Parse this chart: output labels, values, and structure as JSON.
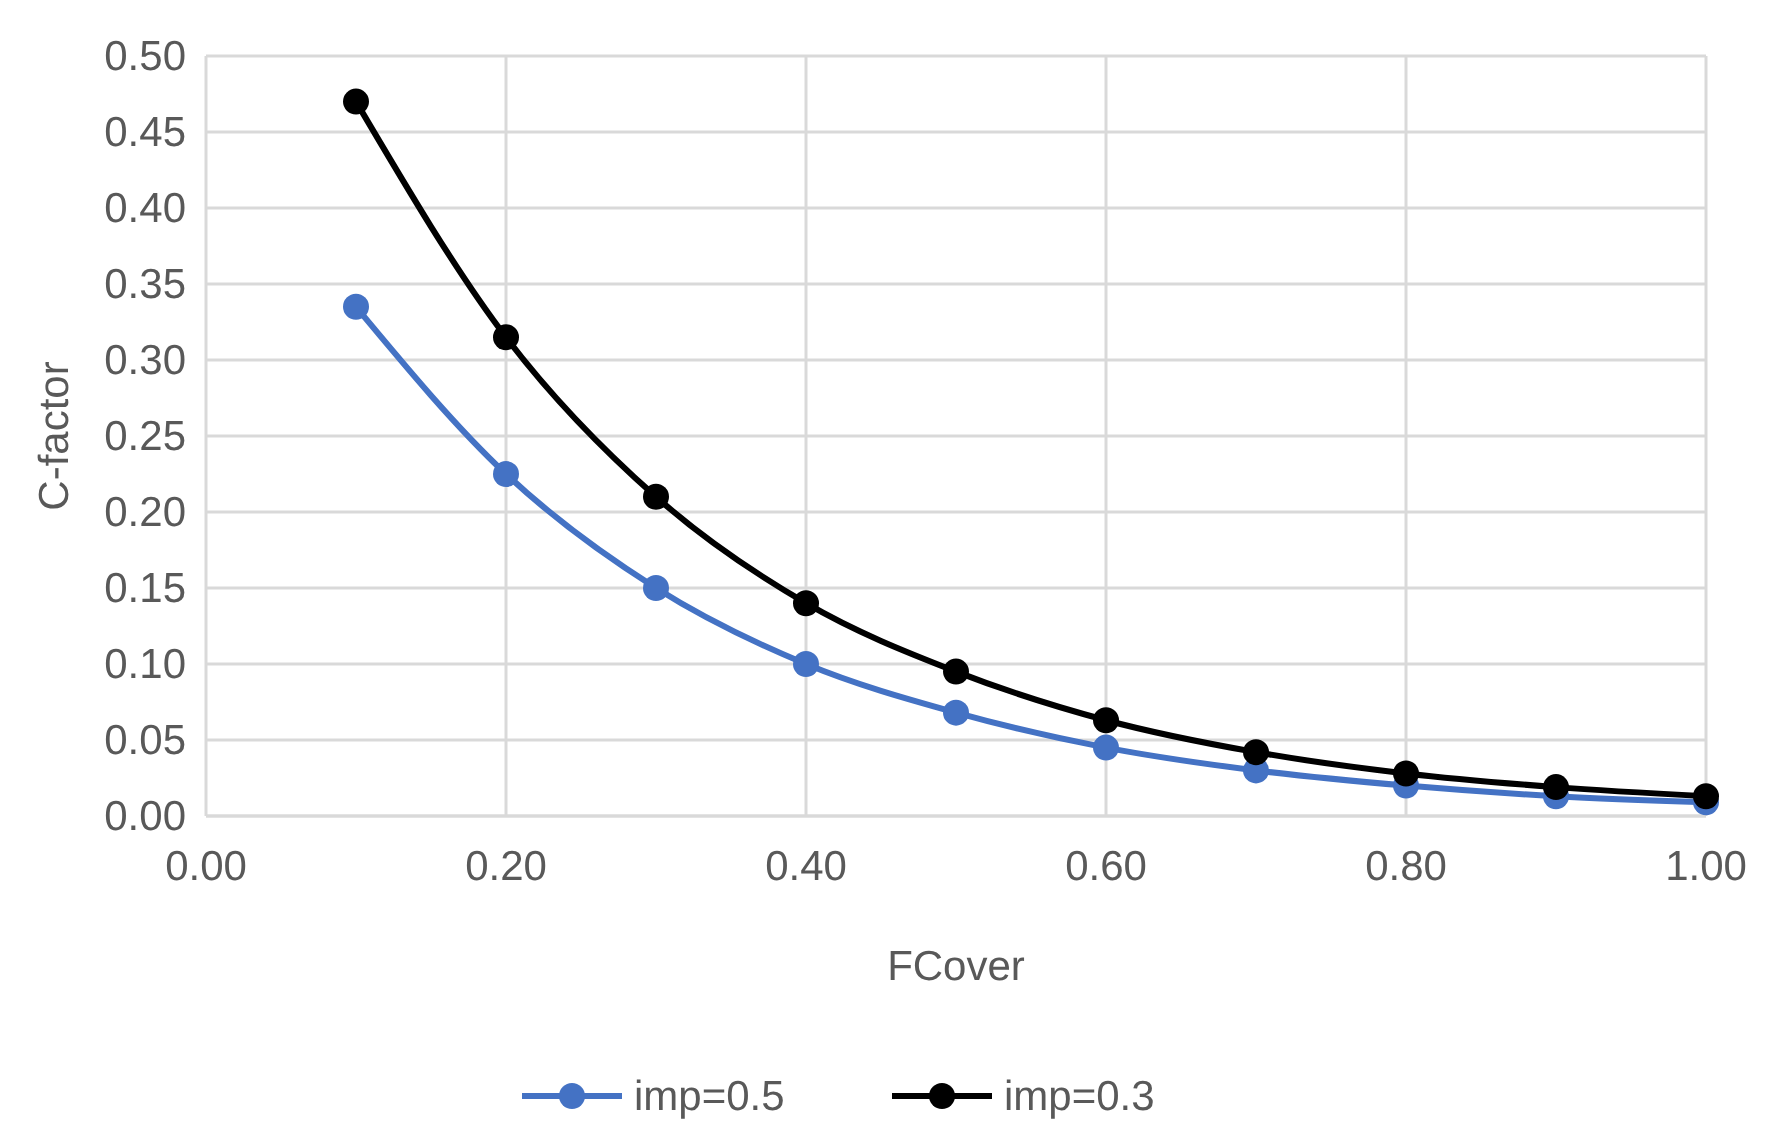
{
  "chart_data": {
    "type": "line",
    "xlabel": "FCover",
    "ylabel": "C-factor",
    "x": [
      0.1,
      0.2,
      0.3,
      0.4,
      0.5,
      0.6,
      0.7,
      0.8,
      0.9,
      1.0
    ],
    "series": [
      {
        "name": "imp=0.5",
        "color": "#4472c4",
        "values": [
          0.335,
          0.225,
          0.15,
          0.1,
          0.068,
          0.045,
          0.03,
          0.02,
          0.013,
          0.009
        ]
      },
      {
        "name": "imp=0.3",
        "color": "#000000",
        "values": [
          0.47,
          0.315,
          0.21,
          0.14,
          0.095,
          0.063,
          0.042,
          0.028,
          0.019,
          0.013
        ]
      }
    ],
    "xlim": [
      0,
      1
    ],
    "xticks": [
      {
        "value": 0,
        "label": "0.00"
      },
      {
        "value": 0.2,
        "label": "0.20"
      },
      {
        "value": 0.4,
        "label": "0.40"
      },
      {
        "value": 0.6,
        "label": "0.60"
      },
      {
        "value": 0.8,
        "label": "0.80"
      },
      {
        "value": 1,
        "label": "1.00"
      }
    ],
    "ylim": [
      0,
      0.5
    ],
    "yticks": [
      {
        "value": 0,
        "label": "0.00"
      },
      {
        "value": 0.05,
        "label": "0.05"
      },
      {
        "value": 0.1,
        "label": "0.10"
      },
      {
        "value": 0.15,
        "label": "0.15"
      },
      {
        "value": 0.2,
        "label": "0.20"
      },
      {
        "value": 0.25,
        "label": "0.25"
      },
      {
        "value": 0.3,
        "label": "0.30"
      },
      {
        "value": 0.35,
        "label": "0.35"
      },
      {
        "value": 0.4,
        "label": "0.40"
      },
      {
        "value": 0.45,
        "label": "0.45"
      },
      {
        "value": 0.5,
        "label": "0.50"
      }
    ],
    "grid": true,
    "legend": "bottom",
    "marker": "circle",
    "line_style": "solid"
  }
}
